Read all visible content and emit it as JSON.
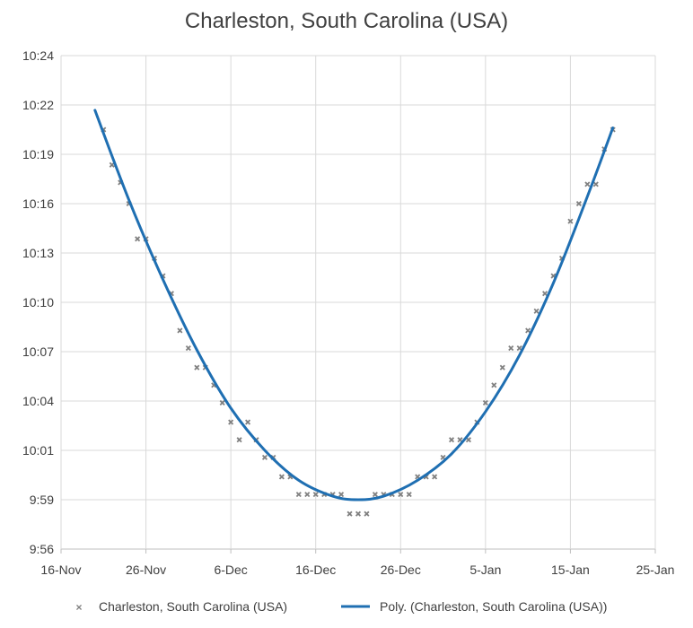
{
  "chart_data": {
    "type": "scatter",
    "title": "Charleston, South Carolina (USA)",
    "xlabel": "",
    "ylabel": "",
    "x_axis": {
      "type": "date",
      "range": [
        "2017-11-16",
        "2018-01-25"
      ],
      "tick_labels": [
        "16-Nov",
        "26-Nov",
        "6-Dec",
        "16-Dec",
        "26-Dec",
        "5-Jan",
        "15-Jan",
        "25-Jan"
      ]
    },
    "y_axis": {
      "unit": "hours:minutes",
      "range": [
        "9:56",
        "10:24"
      ],
      "tick_labels": [
        "9:56",
        "9:59",
        "10:01",
        "10:04",
        "10:07",
        "10:10",
        "10:13",
        "10:16",
        "10:19",
        "10:22",
        "10:24"
      ]
    },
    "grid": true,
    "legend_position": "bottom",
    "colors": {
      "scatter": "#808080",
      "trend": "#1f6fb2"
    },
    "series": [
      {
        "name": "Charleston, South Carolina (USA)",
        "kind": "scatter",
        "points": [
          [
            "2017-11-21",
            "10:19.8"
          ],
          [
            "2017-11-22",
            "10:17.8"
          ],
          [
            "2017-11-23",
            "10:16.8"
          ],
          [
            "2017-11-24",
            "10:15.6"
          ],
          [
            "2017-11-25",
            "10:13.6"
          ],
          [
            "2017-11-26",
            "10:13.6"
          ],
          [
            "2017-11-27",
            "10:12.5"
          ],
          [
            "2017-11-28",
            "10:11.5"
          ],
          [
            "2017-11-29",
            "10:10.5"
          ],
          [
            "2017-11-30",
            "10:08.4"
          ],
          [
            "2017-12-01",
            "10:07.4"
          ],
          [
            "2017-12-02",
            "10:06.3"
          ],
          [
            "2017-12-03",
            "10:06.3"
          ],
          [
            "2017-12-04",
            "10:05.3"
          ],
          [
            "2017-12-05",
            "10:04.3"
          ],
          [
            "2017-12-06",
            "10:03.2"
          ],
          [
            "2017-12-07",
            "10:02.2"
          ],
          [
            "2017-12-08",
            "10:03.2"
          ],
          [
            "2017-12-09",
            "10:02.2"
          ],
          [
            "2017-12-10",
            "10:01.2"
          ],
          [
            "2017-12-11",
            "10:01.2"
          ],
          [
            "2017-12-12",
            "10:00.1"
          ],
          [
            "2017-12-13",
            "10:00.1"
          ],
          [
            "2017-12-14",
            "9:59.1"
          ],
          [
            "2017-12-15",
            "9:59.1"
          ],
          [
            "2017-12-16",
            "9:59.1"
          ],
          [
            "2017-12-17",
            "9:59.1"
          ],
          [
            "2017-12-18",
            "9:59.1"
          ],
          [
            "2017-12-19",
            "9:59.1"
          ],
          [
            "2017-12-20",
            "9:58.0"
          ],
          [
            "2017-12-21",
            "9:58.0"
          ],
          [
            "2017-12-22",
            "9:58.0"
          ],
          [
            "2017-12-23",
            "9:59.1"
          ],
          [
            "2017-12-24",
            "9:59.1"
          ],
          [
            "2017-12-25",
            "9:59.1"
          ],
          [
            "2017-12-26",
            "9:59.1"
          ],
          [
            "2017-12-27",
            "9:59.1"
          ],
          [
            "2017-12-28",
            "10:00.1"
          ],
          [
            "2017-12-29",
            "10:00.1"
          ],
          [
            "2017-12-30",
            "10:00.1"
          ],
          [
            "2017-12-31",
            "10:01.2"
          ],
          [
            "2018-01-01",
            "10:02.2"
          ],
          [
            "2018-01-02",
            "10:02.2"
          ],
          [
            "2018-01-03",
            "10:02.2"
          ],
          [
            "2018-01-04",
            "10:03.2"
          ],
          [
            "2018-01-05",
            "10:04.3"
          ],
          [
            "2018-01-06",
            "10:05.3"
          ],
          [
            "2018-01-07",
            "10:06.3"
          ],
          [
            "2018-01-08",
            "10:07.4"
          ],
          [
            "2018-01-09",
            "10:07.4"
          ],
          [
            "2018-01-10",
            "10:08.4"
          ],
          [
            "2018-01-11",
            "10:09.5"
          ],
          [
            "2018-01-12",
            "10:10.5"
          ],
          [
            "2018-01-13",
            "10:11.5"
          ],
          [
            "2018-01-14",
            "10:12.5"
          ],
          [
            "2018-01-15",
            "10:14.6"
          ],
          [
            "2018-01-16",
            "10:15.6"
          ],
          [
            "2018-01-17",
            "10:16.7"
          ],
          [
            "2018-01-18",
            "10:16.7"
          ],
          [
            "2018-01-19",
            "10:18.7"
          ],
          [
            "2018-01-20",
            "10:19.8"
          ]
        ]
      },
      {
        "name": "Poly. (Charleston, South Carolina (USA))",
        "kind": "trendline",
        "points": [
          [
            "2017-11-20",
            "10:20.9"
          ],
          [
            "2017-11-24",
            "10:15.8"
          ],
          [
            "2017-11-28",
            "10:11.3"
          ],
          [
            "2017-12-02",
            "10:07.3"
          ],
          [
            "2017-12-06",
            "10:04.0"
          ],
          [
            "2017-12-10",
            "10:01.6"
          ],
          [
            "2017-12-14",
            "9:59.9"
          ],
          [
            "2017-12-18",
            "9:59.0"
          ],
          [
            "2017-12-21",
            "9:58.8"
          ],
          [
            "2017-12-24",
            "9:59.0"
          ],
          [
            "2017-12-28",
            "9:59.9"
          ],
          [
            "2018-01-01",
            "10:01.4"
          ],
          [
            "2018-01-05",
            "10:03.8"
          ],
          [
            "2018-01-09",
            "10:07.0"
          ],
          [
            "2018-01-13",
            "10:11.1"
          ],
          [
            "2018-01-17",
            "10:16.0"
          ],
          [
            "2018-01-20",
            "10:19.9"
          ]
        ]
      }
    ]
  }
}
